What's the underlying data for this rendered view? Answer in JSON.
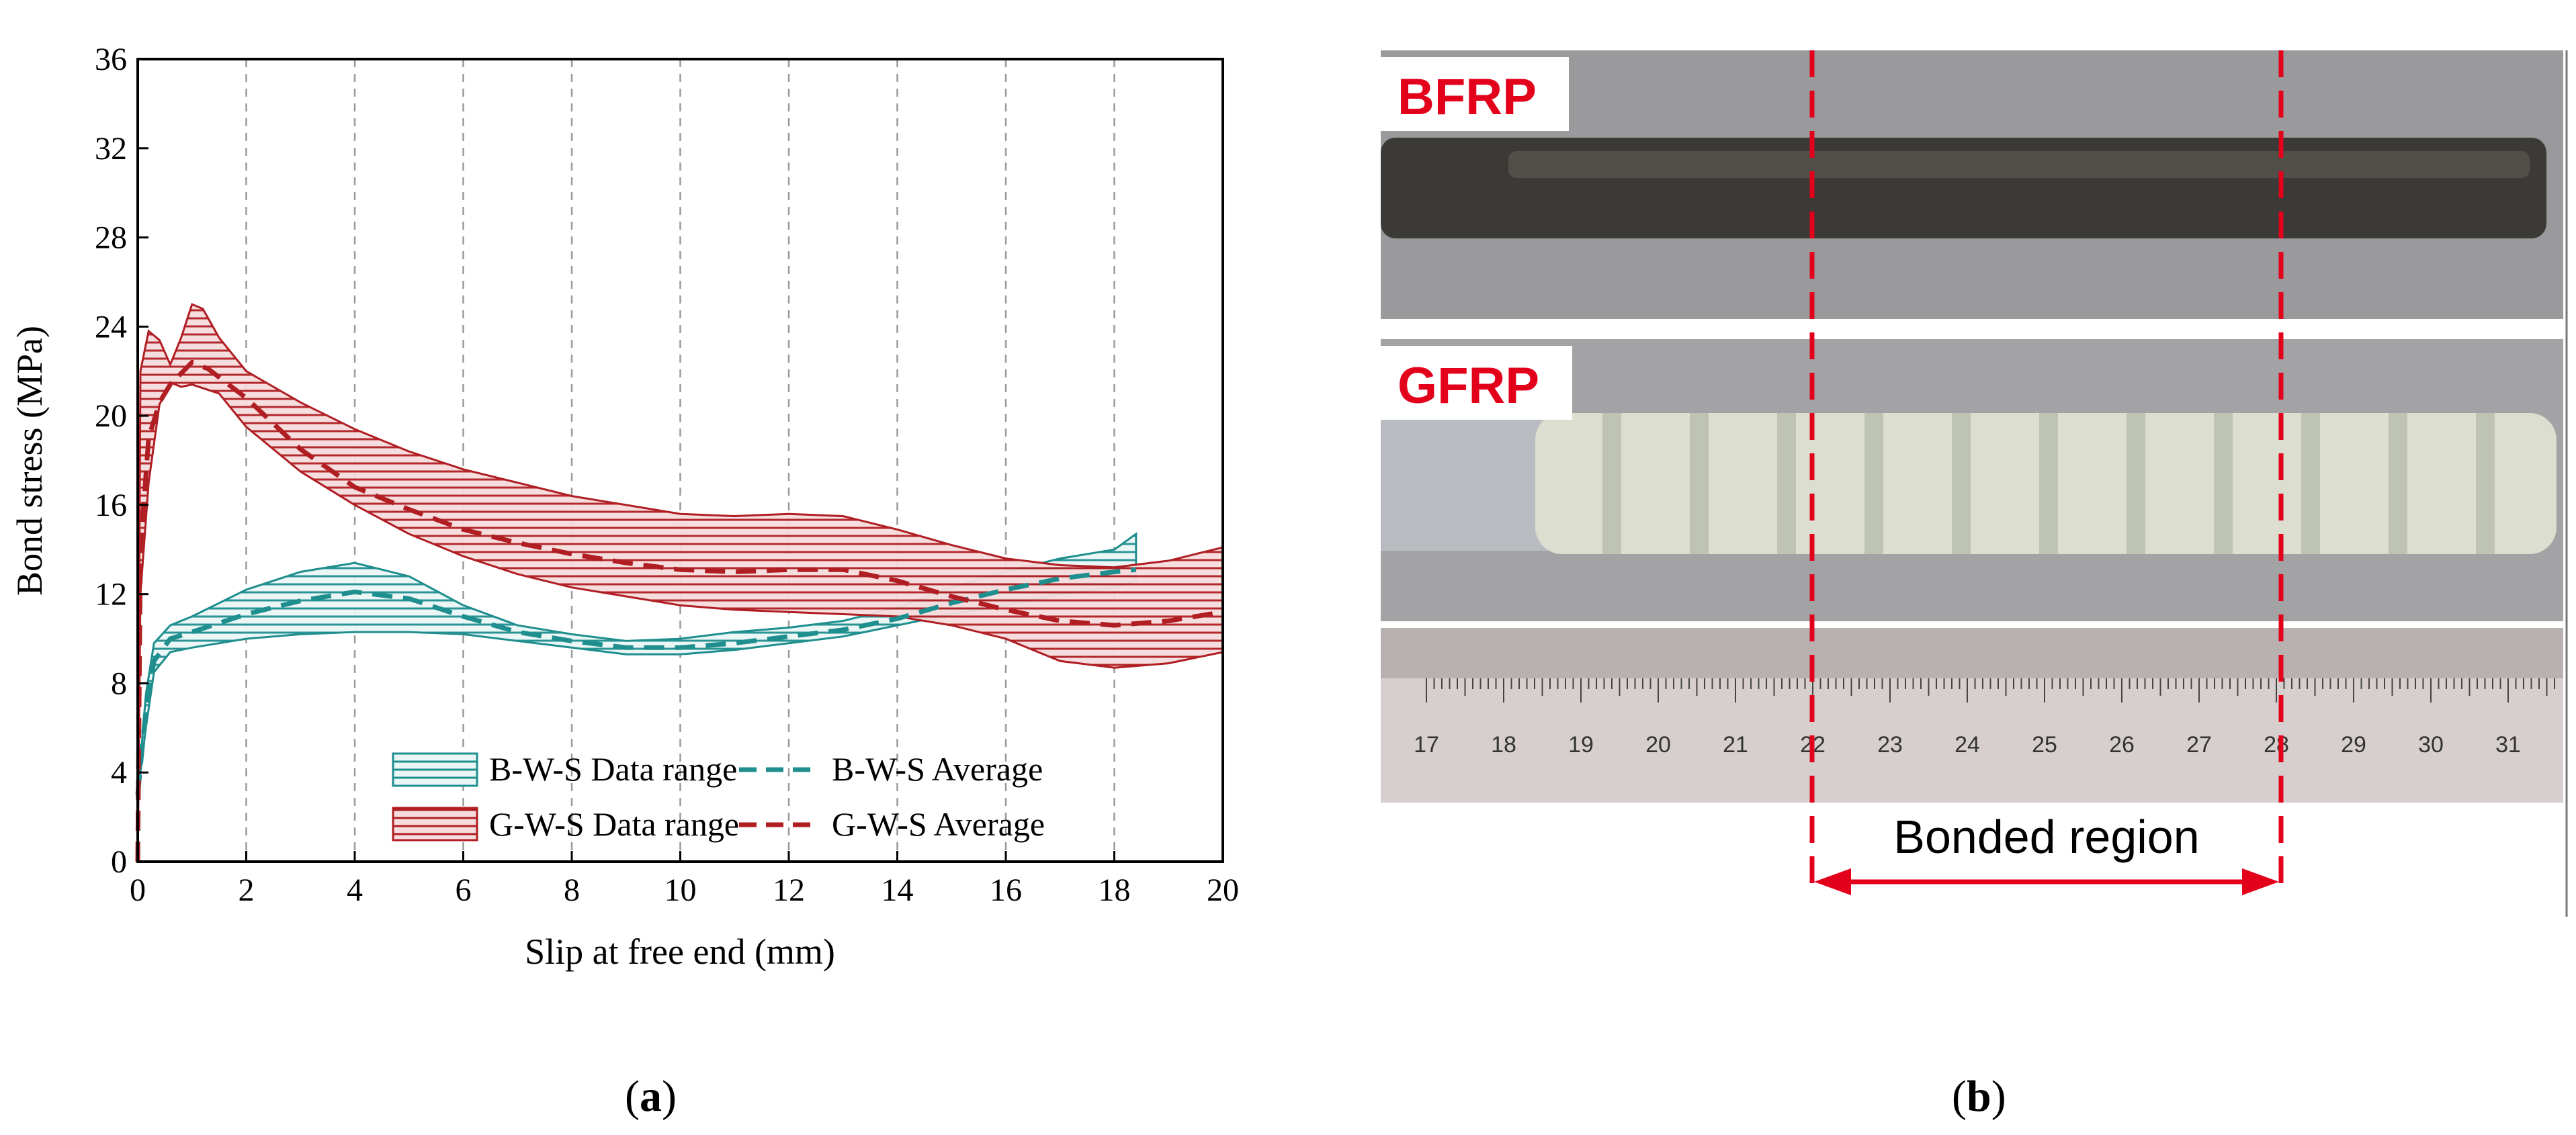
{
  "chart_data": {
    "type": "line",
    "xlabel": "Slip at free end (mm)",
    "ylabel": "Bond stress (MPa)",
    "xlim": [
      0,
      20
    ],
    "ylim": [
      0,
      36
    ],
    "xticks": [
      0,
      2,
      4,
      6,
      8,
      10,
      12,
      14,
      16,
      18,
      20
    ],
    "yticks": [
      0,
      4,
      8,
      12,
      16,
      20,
      24,
      28,
      32,
      36
    ],
    "grid": "vertical dashed at every 2 mm",
    "legend_position": "bottom-right",
    "colors": {
      "B": "#1f8e8e",
      "B_fill": "#cfeaea",
      "G": "#b01e23",
      "G_fill": "#f0c4c4"
    },
    "series": [
      {
        "name": "B-W-S Data range",
        "kind": "band",
        "color": "#1f8e8e",
        "upper": [
          [
            0,
            3
          ],
          [
            0.15,
            7.5
          ],
          [
            0.3,
            9.8
          ],
          [
            0.6,
            10.6
          ],
          [
            1,
            11
          ],
          [
            2,
            12.2
          ],
          [
            3,
            13
          ],
          [
            4,
            13.4
          ],
          [
            5,
            12.8
          ],
          [
            6,
            11.5
          ],
          [
            7,
            10.6
          ],
          [
            8,
            10.2
          ],
          [
            9,
            9.9
          ],
          [
            10,
            10
          ],
          [
            11,
            10.3
          ],
          [
            12,
            10.5
          ],
          [
            13,
            10.8
          ],
          [
            14,
            11.4
          ],
          [
            15,
            12.3
          ],
          [
            16,
            13
          ],
          [
            17,
            13.6
          ],
          [
            18,
            14
          ],
          [
            18.4,
            14.7
          ]
        ],
        "lower": [
          [
            0,
            3
          ],
          [
            0.15,
            6
          ],
          [
            0.3,
            8.5
          ],
          [
            0.6,
            9.4
          ],
          [
            1,
            9.6
          ],
          [
            2,
            10
          ],
          [
            3,
            10.2
          ],
          [
            4,
            10.3
          ],
          [
            5,
            10.3
          ],
          [
            6,
            10.2
          ],
          [
            7,
            9.9
          ],
          [
            8,
            9.6
          ],
          [
            9,
            9.3
          ],
          [
            10,
            9.3
          ],
          [
            11,
            9.5
          ],
          [
            12,
            9.8
          ],
          [
            13,
            10.1
          ],
          [
            14,
            10.6
          ],
          [
            15,
            11.1
          ],
          [
            16,
            11.5
          ],
          [
            17,
            12
          ],
          [
            18,
            12.3
          ],
          [
            18.4,
            12.6
          ]
        ]
      },
      {
        "name": "B-W-S Average",
        "kind": "line",
        "style": "dashed",
        "color": "#1f8e8e",
        "points": [
          [
            0,
            3
          ],
          [
            0.15,
            6.8
          ],
          [
            0.3,
            9
          ],
          [
            0.6,
            10
          ],
          [
            1,
            10.3
          ],
          [
            2,
            11.1
          ],
          [
            3,
            11.7
          ],
          [
            4,
            12.1
          ],
          [
            5,
            11.8
          ],
          [
            6,
            11
          ],
          [
            7,
            10.3
          ],
          [
            8,
            9.9
          ],
          [
            9,
            9.6
          ],
          [
            10,
            9.6
          ],
          [
            11,
            9.8
          ],
          [
            12,
            10.1
          ],
          [
            13,
            10.4
          ],
          [
            14,
            10.9
          ],
          [
            15,
            11.6
          ],
          [
            16,
            12.2
          ],
          [
            17,
            12.7
          ],
          [
            18,
            13
          ],
          [
            18.4,
            13.1
          ]
        ]
      },
      {
        "name": "G-W-S Data range",
        "kind": "band",
        "color": "#b01e23",
        "upper": [
          [
            0,
            0
          ],
          [
            0.05,
            22
          ],
          [
            0.2,
            23.8
          ],
          [
            0.4,
            23.4
          ],
          [
            0.6,
            22.3
          ],
          [
            0.8,
            23.5
          ],
          [
            1,
            25
          ],
          [
            1.2,
            24.8
          ],
          [
            1.5,
            23.5
          ],
          [
            2,
            22
          ],
          [
            3,
            20.6
          ],
          [
            4,
            19.4
          ],
          [
            5,
            18.4
          ],
          [
            6,
            17.6
          ],
          [
            7,
            17
          ],
          [
            8,
            16.4
          ],
          [
            9,
            16
          ],
          [
            10,
            15.6
          ],
          [
            11,
            15.5
          ],
          [
            12,
            15.6
          ],
          [
            13,
            15.5
          ],
          [
            14,
            14.9
          ],
          [
            15,
            14.2
          ],
          [
            16,
            13.6
          ],
          [
            17,
            13.3
          ],
          [
            18,
            13.2
          ],
          [
            19,
            13.5
          ],
          [
            20,
            14.1
          ]
        ],
        "lower": [
          [
            0,
            0
          ],
          [
            0.05,
            12
          ],
          [
            0.2,
            17
          ],
          [
            0.4,
            20.5
          ],
          [
            0.6,
            21.5
          ],
          [
            0.8,
            21.3
          ],
          [
            1,
            21.4
          ],
          [
            1.5,
            21
          ],
          [
            2,
            19.5
          ],
          [
            3,
            17.5
          ],
          [
            4,
            16
          ],
          [
            5,
            14.7
          ],
          [
            6,
            13.7
          ],
          [
            7,
            12.9
          ],
          [
            8,
            12.3
          ],
          [
            9,
            11.9
          ],
          [
            10,
            11.5
          ],
          [
            11,
            11.3
          ],
          [
            12,
            11.2
          ],
          [
            13,
            11.1
          ],
          [
            14,
            11
          ],
          [
            15,
            10.6
          ],
          [
            16,
            10
          ],
          [
            17,
            9
          ],
          [
            18,
            8.7
          ],
          [
            19,
            8.9
          ],
          [
            20,
            9.4
          ]
        ]
      },
      {
        "name": "G-W-S Average",
        "kind": "line",
        "style": "dashed",
        "color": "#b01e23",
        "points": [
          [
            0,
            0
          ],
          [
            0.05,
            14
          ],
          [
            0.2,
            19
          ],
          [
            0.4,
            20.6
          ],
          [
            0.6,
            21.4
          ],
          [
            0.8,
            21.9
          ],
          [
            1,
            22.4
          ],
          [
            1.3,
            22.1
          ],
          [
            2,
            20.8
          ],
          [
            3,
            18.5
          ],
          [
            4,
            16.8
          ],
          [
            5,
            15.8
          ],
          [
            6,
            14.9
          ],
          [
            7,
            14.3
          ],
          [
            8,
            13.8
          ],
          [
            9,
            13.4
          ],
          [
            10,
            13.1
          ],
          [
            11,
            13
          ],
          [
            12,
            13.1
          ],
          [
            13,
            13.1
          ],
          [
            14,
            12.6
          ],
          [
            15,
            11.9
          ],
          [
            16,
            11.3
          ],
          [
            17,
            10.8
          ],
          [
            18,
            10.6
          ],
          [
            19,
            10.8
          ],
          [
            20,
            11.2
          ]
        ]
      }
    ]
  },
  "captions": {
    "a": "a",
    "b": "b"
  },
  "photo": {
    "labels": [
      "BFRP",
      "GFRP"
    ],
    "ruler_numbers": [
      "17",
      "18",
      "19",
      "20",
      "21",
      "22",
      "23",
      "24",
      "25",
      "26",
      "27",
      "28",
      "29",
      "30",
      "31"
    ],
    "region_label": "Bonded region"
  }
}
